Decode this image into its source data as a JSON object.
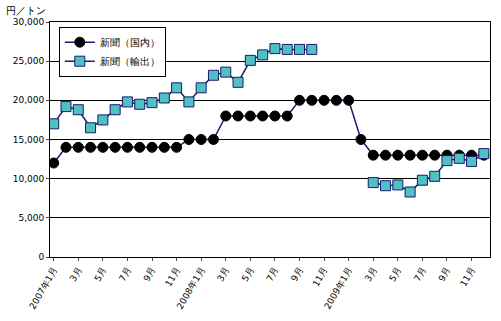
{
  "chart_data": {
    "type": "line",
    "y_label": "円／トン",
    "categories": [
      "2007年1月",
      null,
      "3月",
      null,
      "5月",
      null,
      "7月",
      null,
      "9月",
      null,
      "11月",
      null,
      "2008年1月",
      null,
      "3月",
      null,
      "5月",
      null,
      "7月",
      null,
      "9月",
      null,
      "11月",
      null,
      "2009年1月",
      null,
      "3月",
      null,
      "5月",
      null,
      "7月",
      null,
      "9月",
      null,
      "11月",
      null
    ],
    "series": [
      {
        "name": "新聞（国内）",
        "color": "#1a1a6e",
        "marker": "circle",
        "values": [
          12000,
          14000,
          14000,
          14000,
          14000,
          14000,
          14000,
          14000,
          14000,
          14000,
          14000,
          15000,
          15000,
          15000,
          18000,
          18000,
          18000,
          18000,
          18000,
          18000,
          20000,
          20000,
          20000,
          20000,
          20000,
          15000,
          13000,
          13000,
          13000,
          13000,
          13000,
          13000,
          13000,
          13000,
          13000,
          13000
        ]
      },
      {
        "name": "新聞（輸出）",
        "color": "#1a1a6e",
        "marker": "square",
        "values": [
          17000,
          19200,
          18800,
          16500,
          17500,
          18800,
          19800,
          19500,
          19700,
          20300,
          21600,
          19800,
          21600,
          23200,
          23600,
          22300,
          25100,
          25800,
          26600,
          26500,
          26500,
          26500,
          null,
          null,
          null,
          null,
          9500,
          9100,
          9200,
          8300,
          9800,
          10300,
          12300,
          12600,
          12200,
          13200
        ]
      }
    ],
    "ylim": [
      0,
      30000
    ],
    "yticks": [
      0,
      {
        "value": 5000,
        "label": "5,000"
      },
      {
        "value": 10000,
        "label": "10,000"
      },
      {
        "value": 15000,
        "label": "15,000"
      },
      {
        "value": 20000,
        "label": "20,000"
      },
      {
        "value": 25000,
        "label": "25,000"
      },
      {
        "value": 30000,
        "label": "30,000"
      }
    ],
    "grid": true,
    "legend": "upper left"
  }
}
